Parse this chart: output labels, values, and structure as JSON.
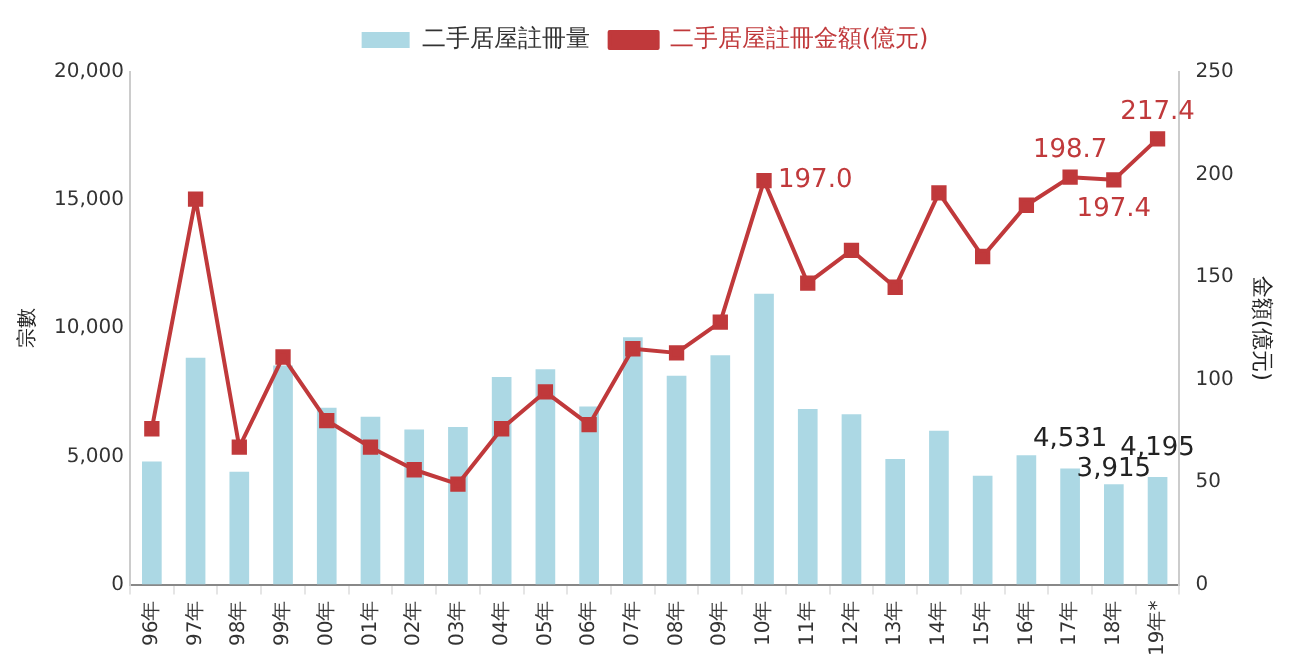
{
  "chart_data": {
    "type": "bar",
    "ylabel": "宗數",
    "y2label": "金額(億元)",
    "categories": [
      "96年",
      "97年",
      "98年",
      "99年",
      "00年",
      "01年",
      "02年",
      "03年",
      "04年",
      "05年",
      "06年",
      "07年",
      "08年",
      "09年",
      "10年",
      "11年",
      "12年",
      "13年",
      "14年",
      "15年",
      "16年",
      "17年",
      "18年",
      "19年*"
    ],
    "series": [
      {
        "name": "二手居屋註冊量",
        "color": "#acd8e4",
        "values": [
          4800,
          8850,
          4400,
          8550,
          6900,
          6550,
          6050,
          6150,
          8100,
          8400,
          6950,
          9650,
          8150,
          8950,
          11350,
          6850,
          6650,
          4900,
          6000,
          4250,
          5050,
          4531,
          3915,
          4195
        ],
        "value_labels": [
          null,
          null,
          null,
          null,
          null,
          null,
          null,
          null,
          null,
          null,
          null,
          null,
          null,
          null,
          null,
          null,
          null,
          null,
          null,
          null,
          null,
          "4,531",
          "3,915",
          "4,195"
        ]
      },
      {
        "name": "二手居屋註冊金額(億元)",
        "type": "line",
        "axis": "y2",
        "color": "#c0393b",
        "values": [
          76,
          188,
          67,
          111,
          80,
          67,
          56,
          49,
          76,
          94,
          78,
          115,
          113,
          128,
          197.0,
          147,
          163,
          145,
          191,
          160,
          185,
          198.7,
          197.4,
          217.4
        ],
        "value_labels": [
          null,
          null,
          null,
          null,
          null,
          null,
          null,
          null,
          null,
          null,
          null,
          null,
          null,
          null,
          "197.0",
          null,
          null,
          null,
          null,
          null,
          null,
          "198.7",
          "197.4",
          "217.4"
        ]
      }
    ],
    "ylim": [
      0,
      20000
    ],
    "yticks": [
      {
        "value": 0,
        "label": "0"
      },
      {
        "value": 5000,
        "label": "5,000"
      },
      {
        "value": 10000,
        "label": "10,000"
      },
      {
        "value": 15000,
        "label": "15,000"
      },
      {
        "value": 20000,
        "label": "20,000"
      }
    ],
    "y2lim": [
      0,
      250
    ],
    "y2ticks": [
      0,
      50,
      100,
      150,
      200,
      250
    ],
    "grid": false,
    "legend": "top",
    "marker": "square",
    "line_style": "solid"
  }
}
